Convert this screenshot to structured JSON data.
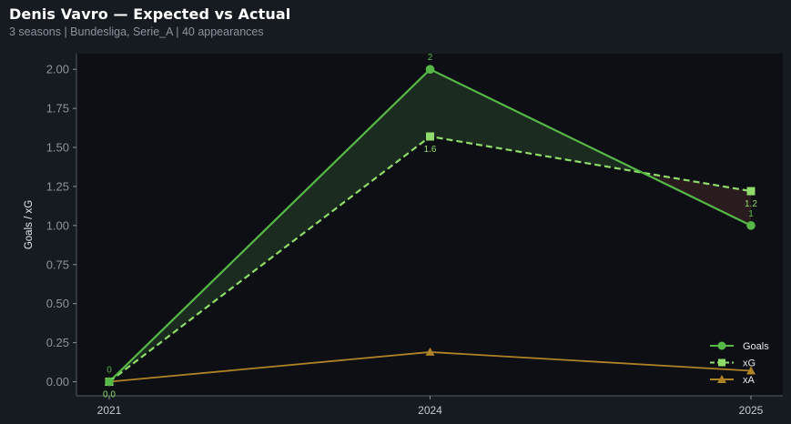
{
  "title": "Denis Vavro — Expected vs Actual",
  "subtitle": "3 seasons | Bundesliga, Serie_A | 40 appearances",
  "colors": {
    "goals": "#56b947",
    "xg": "#8fdc6a",
    "xa": "#b08226",
    "over_fill": "#1b2b20",
    "under_fill": "#2a1c1e",
    "plot_bg": "#0d0f15",
    "page_bg": "#161a21"
  },
  "chart_data": {
    "type": "line",
    "categories": [
      "2021",
      "2024",
      "2025"
    ],
    "series": [
      {
        "name": "Goals",
        "values": [
          0,
          2,
          1
        ],
        "labels": [
          "0",
          "2",
          "1"
        ],
        "marker": "circle",
        "style": "solid"
      },
      {
        "name": "xG",
        "values": [
          0.0,
          1.57,
          1.22
        ],
        "labels": [
          "0.0",
          "1.6",
          "1.2"
        ],
        "marker": "square",
        "style": "dashed"
      },
      {
        "name": "xA",
        "values": [
          0.0,
          0.19,
          0.07
        ],
        "marker": "triangle",
        "style": "solid"
      }
    ],
    "ylabel": "Goals / xG",
    "xlabel": "",
    "ylim": [
      -0.09,
      2.1
    ],
    "yticks": [
      "0.00",
      "0.25",
      "0.50",
      "0.75",
      "1.00",
      "1.25",
      "1.50",
      "1.75",
      "2.00"
    ],
    "legend": "bottom-right",
    "grid": false
  }
}
